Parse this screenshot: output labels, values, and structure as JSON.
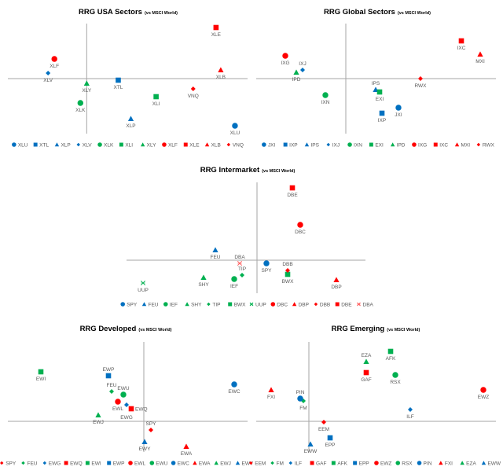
{
  "colors": {
    "red": "#ff0000",
    "blue": "#0070c0",
    "green": "#00b050",
    "pink": "#ff5a5a",
    "axis": "#a6a6a6"
  },
  "chart_data": [
    {
      "type": "scatter",
      "title": "RRG USA Sectors",
      "subtitle": "(vs MSCI World)",
      "xlim": [
        -10,
        20.4
      ],
      "ylim": [
        -7,
        7
      ],
      "grid": false,
      "legend": "bottom",
      "series": [
        {
          "name": "XLU",
          "x": 18.8,
          "y": -6.0,
          "marker": "circle",
          "color": "blue"
        },
        {
          "name": "XTL",
          "x": 4.0,
          "y": -0.2,
          "marker": "square",
          "color": "blue"
        },
        {
          "name": "XLP",
          "x": 5.6,
          "y": -5.1,
          "marker": "triangle",
          "color": "blue"
        },
        {
          "name": "XLV",
          "x": -4.9,
          "y": 0.7,
          "marker": "diamond",
          "color": "blue"
        },
        {
          "name": "XLK",
          "x": -0.8,
          "y": -3.1,
          "marker": "circle",
          "color": "green"
        },
        {
          "name": "XLI",
          "x": 8.8,
          "y": -2.3,
          "marker": "square",
          "color": "green"
        },
        {
          "name": "XLY",
          "x": 0.0,
          "y": -0.6,
          "marker": "triangle",
          "color": "green"
        },
        {
          "name": "XLF",
          "x": -4.1,
          "y": 2.5,
          "marker": "circle",
          "color": "red"
        },
        {
          "name": "XLE",
          "x": 16.4,
          "y": 6.5,
          "marker": "square",
          "color": "red"
        },
        {
          "name": "XLB",
          "x": 17.0,
          "y": 1.1,
          "marker": "triangle",
          "color": "red"
        },
        {
          "name": "VNQ",
          "x": 13.5,
          "y": -1.3,
          "marker": "diamond",
          "color": "red"
        }
      ]
    },
    {
      "type": "scatter",
      "title": "RRG Global Sectors",
      "subtitle": "(vs MSCI World)",
      "xlim": [
        -11.4,
        19.1
      ],
      "ylim": [
        -7,
        7
      ],
      "grid": false,
      "legend": "bottom",
      "series": [
        {
          "name": "JXI",
          "x": 6.7,
          "y": -3.7,
          "marker": "circle",
          "color": "blue"
        },
        {
          "name": "IXP",
          "x": 4.6,
          "y": -4.4,
          "marker": "square",
          "color": "blue"
        },
        {
          "name": "IPS",
          "x": 3.8,
          "y": -1.4,
          "marker": "triangle",
          "color": "blue"
        },
        {
          "name": "IXJ",
          "x": -5.5,
          "y": 1.1,
          "marker": "diamond",
          "color": "blue"
        },
        {
          "name": "IXN",
          "x": -2.6,
          "y": -2.1,
          "marker": "circle",
          "color": "green"
        },
        {
          "name": "EXI",
          "x": 4.3,
          "y": -1.7,
          "marker": "square",
          "color": "green"
        },
        {
          "name": "IPD",
          "x": -6.3,
          "y": 0.8,
          "marker": "triangle",
          "color": "green"
        },
        {
          "name": "IXG",
          "x": -7.7,
          "y": 2.9,
          "marker": "circle",
          "color": "red"
        },
        {
          "name": "IXC",
          "x": 14.7,
          "y": 4.8,
          "marker": "square",
          "color": "red"
        },
        {
          "name": "MXI",
          "x": 17.1,
          "y": 3.1,
          "marker": "triangle",
          "color": "red"
        },
        {
          "name": "RWX",
          "x": 9.5,
          "y": 0.0,
          "marker": "diamond",
          "color": "red"
        }
      ]
    },
    {
      "type": "scatter",
      "title": "RRG Intermarket",
      "subtitle": "(vs MSCI World)",
      "xlim": [
        -16.6,
        13.8
      ],
      "ylim": [
        -4.2,
        9.9
      ],
      "grid": false,
      "legend": "bottom",
      "series": [
        {
          "name": "SPY",
          "x": 1.2,
          "y": -0.4,
          "marker": "circle",
          "color": "blue"
        },
        {
          "name": "FEU",
          "x": -5.3,
          "y": 1.3,
          "marker": "triangle",
          "color": "blue"
        },
        {
          "name": "IEF",
          "x": -2.9,
          "y": -2.4,
          "marker": "circle",
          "color": "green"
        },
        {
          "name": "SHY",
          "x": -6.8,
          "y": -2.2,
          "marker": "triangle",
          "color": "green"
        },
        {
          "name": "TIP",
          "x": -1.9,
          "y": -1.9,
          "marker": "diamond",
          "color": "green"
        },
        {
          "name": "BWX",
          "x": 3.9,
          "y": -1.8,
          "marker": "square",
          "color": "green"
        },
        {
          "name": "UUP",
          "x": -14.5,
          "y": -2.9,
          "marker": "x",
          "color": "green"
        },
        {
          "name": "DBC",
          "x": 5.5,
          "y": 4.5,
          "marker": "circle",
          "color": "red"
        },
        {
          "name": "DBP",
          "x": 10.1,
          "y": -2.5,
          "marker": "triangle",
          "color": "red"
        },
        {
          "name": "DBB",
          "x": 3.9,
          "y": -1.3,
          "marker": "diamond",
          "color": "red"
        },
        {
          "name": "DBE",
          "x": 4.5,
          "y": 9.2,
          "marker": "square",
          "color": "red"
        },
        {
          "name": "DBA",
          "x": -2.2,
          "y": -0.4,
          "marker": "x",
          "color": "pink"
        }
      ]
    },
    {
      "type": "scatter",
      "title": "RRG Developed",
      "subtitle": "(vs MSCI World)",
      "xlim": [
        -17.3,
        13.2
      ],
      "ylim": [
        -3.9,
        10.1
      ],
      "grid": false,
      "legend": "bottom",
      "series": [
        {
          "name": "SPY",
          "x": 0.9,
          "y": -1.1,
          "marker": "diamond",
          "color": "red"
        },
        {
          "name": "FEU",
          "x": -4.1,
          "y": 3.8,
          "marker": "diamond",
          "color": "green"
        },
        {
          "name": "EWG",
          "x": -2.2,
          "y": 2.1,
          "marker": "diamond",
          "color": "blue"
        },
        {
          "name": "EWQ",
          "x": -1.6,
          "y": 1.6,
          "marker": "square",
          "color": "red"
        },
        {
          "name": "EWI",
          "x": -13.1,
          "y": 6.3,
          "marker": "square",
          "color": "green"
        },
        {
          "name": "EWP",
          "x": -4.5,
          "y": 5.8,
          "marker": "square",
          "color": "blue"
        },
        {
          "name": "EWL",
          "x": -3.3,
          "y": 2.5,
          "marker": "circle",
          "color": "red"
        },
        {
          "name": "EWU",
          "x": -2.6,
          "y": 3.4,
          "marker": "circle",
          "color": "green"
        },
        {
          "name": "EWC",
          "x": 11.5,
          "y": 4.7,
          "marker": "circle",
          "color": "blue"
        },
        {
          "name": "EWA",
          "x": 5.4,
          "y": -3.2,
          "marker": "triangle",
          "color": "red"
        },
        {
          "name": "EWJ",
          "x": -5.8,
          "y": 0.8,
          "marker": "triangle",
          "color": "green"
        },
        {
          "name": "EWY",
          "x": 0.1,
          "y": -2.6,
          "marker": "triangle",
          "color": "blue"
        }
      ]
    },
    {
      "type": "scatter",
      "title": "RRG Emerging",
      "subtitle": "(vs MSCI World)",
      "xlim": [
        -6.7,
        23.8
      ],
      "ylim": [
        -3.9,
        10.1
      ],
      "grid": false,
      "legend": "bottom",
      "series": [
        {
          "name": "EEM",
          "x": 1.9,
          "y": -0.1,
          "marker": "diamond",
          "color": "red"
        },
        {
          "name": "FM",
          "x": -0.7,
          "y": 2.6,
          "marker": "diamond",
          "color": "green"
        },
        {
          "name": "ILF",
          "x": 12.9,
          "y": 1.5,
          "marker": "diamond",
          "color": "blue"
        },
        {
          "name": "GAF",
          "x": 7.3,
          "y": 6.2,
          "marker": "square",
          "color": "red"
        },
        {
          "name": "AFK",
          "x": 10.4,
          "y": 8.9,
          "marker": "square",
          "color": "green"
        },
        {
          "name": "EPP",
          "x": 2.7,
          "y": -2.1,
          "marker": "square",
          "color": "blue"
        },
        {
          "name": "EWZ",
          "x": 22.2,
          "y": 4.0,
          "marker": "circle",
          "color": "red"
        },
        {
          "name": "RSX",
          "x": 11.0,
          "y": 5.9,
          "marker": "circle",
          "color": "green"
        },
        {
          "name": "PIN",
          "x": -1.1,
          "y": 2.9,
          "marker": "circle",
          "color": "blue"
        },
        {
          "name": "FXI",
          "x": -4.8,
          "y": 4.0,
          "marker": "triangle",
          "color": "red"
        },
        {
          "name": "EZA",
          "x": 7.3,
          "y": 7.6,
          "marker": "triangle",
          "color": "green"
        },
        {
          "name": "EWW",
          "x": 0.2,
          "y": -2.9,
          "marker": "triangle",
          "color": "blue"
        }
      ]
    }
  ]
}
